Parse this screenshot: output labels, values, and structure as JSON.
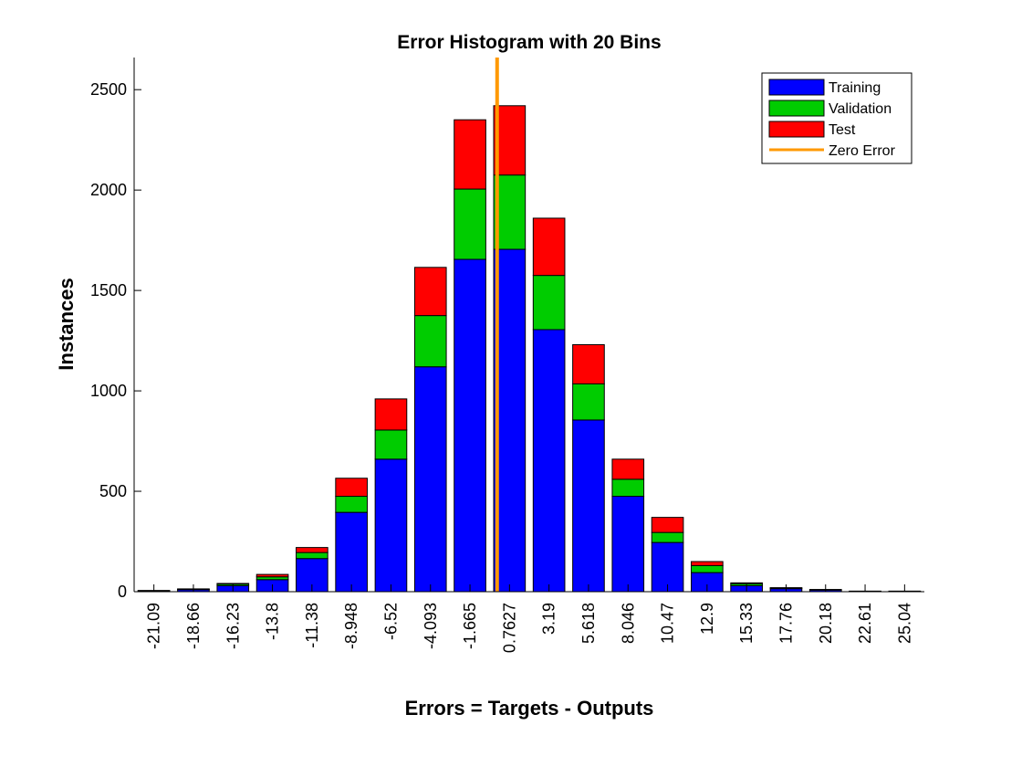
{
  "chart_data": {
    "type": "bar",
    "stacked": true,
    "title": "Error Histogram with 20 Bins",
    "xlabel": "Errors = Targets - Outputs",
    "ylabel": "Instances",
    "categories": [
      "-21.09",
      "-18.66",
      "-16.23",
      "-13.8",
      "-11.38",
      "-8.948",
      "-6.52",
      "-4.093",
      "-1.665",
      "0.7627",
      "3.19",
      "5.618",
      "8.046",
      "10.47",
      "12.9",
      "15.33",
      "17.76",
      "20.18",
      "22.61",
      "25.04"
    ],
    "series": [
      {
        "name": "Training",
        "color": "#0000ff",
        "values": [
          4,
          10,
          30,
          60,
          165,
          395,
          660,
          1120,
          1655,
          1705,
          1305,
          855,
          475,
          245,
          95,
          30,
          15,
          8,
          2,
          2
        ]
      },
      {
        "name": "Validation",
        "color": "#00cc00",
        "values": [
          1,
          2,
          8,
          14,
          30,
          80,
          145,
          255,
          350,
          370,
          270,
          180,
          85,
          50,
          35,
          10,
          3,
          2,
          1,
          1
        ]
      },
      {
        "name": "Test",
        "color": "#ff0000",
        "values": [
          1,
          2,
          3,
          12,
          25,
          90,
          155,
          240,
          345,
          345,
          285,
          195,
          100,
          75,
          20,
          4,
          2,
          1,
          0,
          0
        ]
      }
    ],
    "zero_error": {
      "name": "Zero Error",
      "color": "#ff9900",
      "x": 0
    },
    "ylim": [
      0,
      2660
    ],
    "yticks": [
      0,
      500,
      1000,
      1500,
      2000,
      2500
    ],
    "grid": false,
    "legend_position": "top-right"
  }
}
